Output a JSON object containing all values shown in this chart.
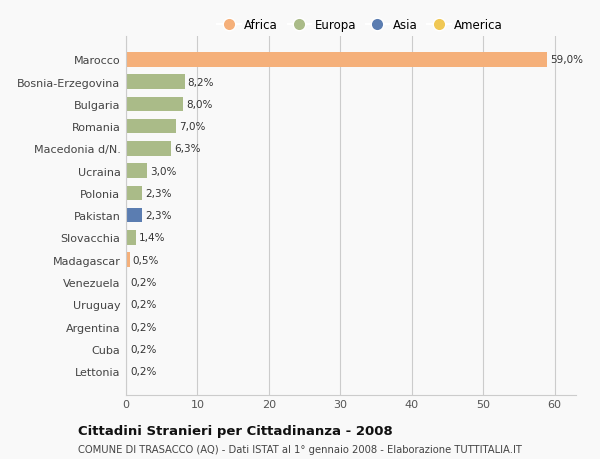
{
  "countries": [
    "Marocco",
    "Bosnia-Erzegovina",
    "Bulgaria",
    "Romania",
    "Macedonia d/N.",
    "Ucraina",
    "Polonia",
    "Pakistan",
    "Slovacchia",
    "Madagascar",
    "Venezuela",
    "Uruguay",
    "Argentina",
    "Cuba",
    "Lettonia"
  ],
  "values": [
    59.0,
    8.2,
    8.0,
    7.0,
    6.3,
    3.0,
    2.3,
    2.3,
    1.4,
    0.5,
    0.2,
    0.2,
    0.2,
    0.2,
    0.2
  ],
  "labels": [
    "59,0%",
    "8,2%",
    "8,0%",
    "7,0%",
    "6,3%",
    "3,0%",
    "2,3%",
    "2,3%",
    "1,4%",
    "0,5%",
    "0,2%",
    "0,2%",
    "0,2%",
    "0,2%",
    "0,2%"
  ],
  "continents": [
    "Africa",
    "Europa",
    "Europa",
    "Europa",
    "Europa",
    "Europa",
    "Europa",
    "Asia",
    "Europa",
    "Africa",
    "America",
    "America",
    "America",
    "America",
    "Europa"
  ],
  "colors": {
    "Africa": "#F5B07A",
    "Europa": "#AABB88",
    "Asia": "#5B7DB1",
    "America": "#F0C855"
  },
  "xlim": [
    0,
    63
  ],
  "xticks": [
    0,
    10,
    20,
    30,
    40,
    50,
    60
  ],
  "title": "Cittadini Stranieri per Cittadinanza - 2008",
  "subtitle": "COMUNE DI TRASACCO (AQ) - Dati ISTAT al 1° gennaio 2008 - Elaborazione TUTTITALIA.IT",
  "background_color": "#f9f9f9",
  "grid_color": "#cccccc",
  "bar_height": 0.65
}
